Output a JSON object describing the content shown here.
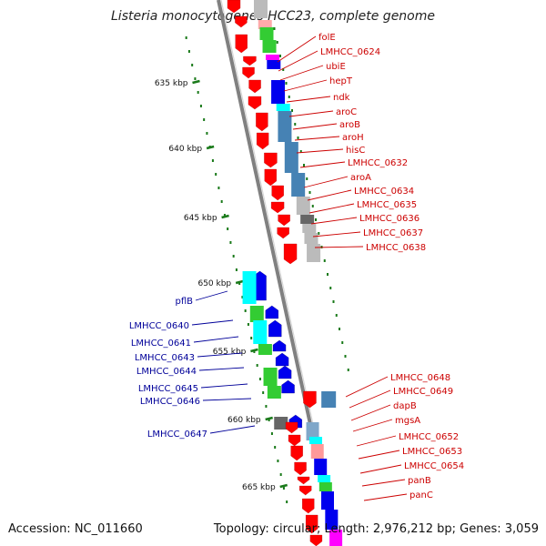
{
  "title": "Listeria monocytogenes HCC23, complete genome",
  "footer": {
    "accession": "Accession: NC_011660",
    "info": "Topology: circular; Length: 2,976,212 bp; Genes: 3,059"
  },
  "colors": {
    "backbone": "#808080",
    "red_gene": "#ff0000",
    "blue_gene": "#0000ee",
    "red_label": "#cc0000",
    "blue_label": "#000099",
    "tick": "#1a7a1a",
    "cyan": "#00ffff",
    "green": "#33cc33",
    "steel": "#4682b4",
    "lightsteel": "#7fa7c9",
    "grey": "#bbbbbb",
    "darkgrey": "#666666",
    "salmon": "#ff9999",
    "magenta": "#ff00ff",
    "pink": "#ffaaaa"
  },
  "chart_data": {
    "type": "genome_map",
    "kbp_ticks": [
      "635 kbp",
      "640 kbp",
      "645 kbp",
      "650 kbp",
      "655 kbp",
      "660 kbp",
      "665 kbp"
    ],
    "red_labels": [
      "folE",
      "LMHCC_0624",
      "ubiE",
      "hepT",
      "ndk",
      "aroC",
      "aroB",
      "aroH",
      "hisC",
      "LMHCC_0632",
      "aroA",
      "LMHCC_0634",
      "LMHCC_0635",
      "LMHCC_0636",
      "LMHCC_0637",
      "LMHCC_0638",
      "LMHCC_0648",
      "LMHCC_0649",
      "dapB",
      "mgsA",
      "LMHCC_0652",
      "LMHCC_0653",
      "LMHCC_0654",
      "panB",
      "panC"
    ],
    "blue_labels": [
      "pflB",
      "LMHCC_0640",
      "LMHCC_0641",
      "LMHCC_0643",
      "LMHCC_0644",
      "LMHCC_0645",
      "LMHCC_0646",
      "LMHCC_0647"
    ]
  }
}
